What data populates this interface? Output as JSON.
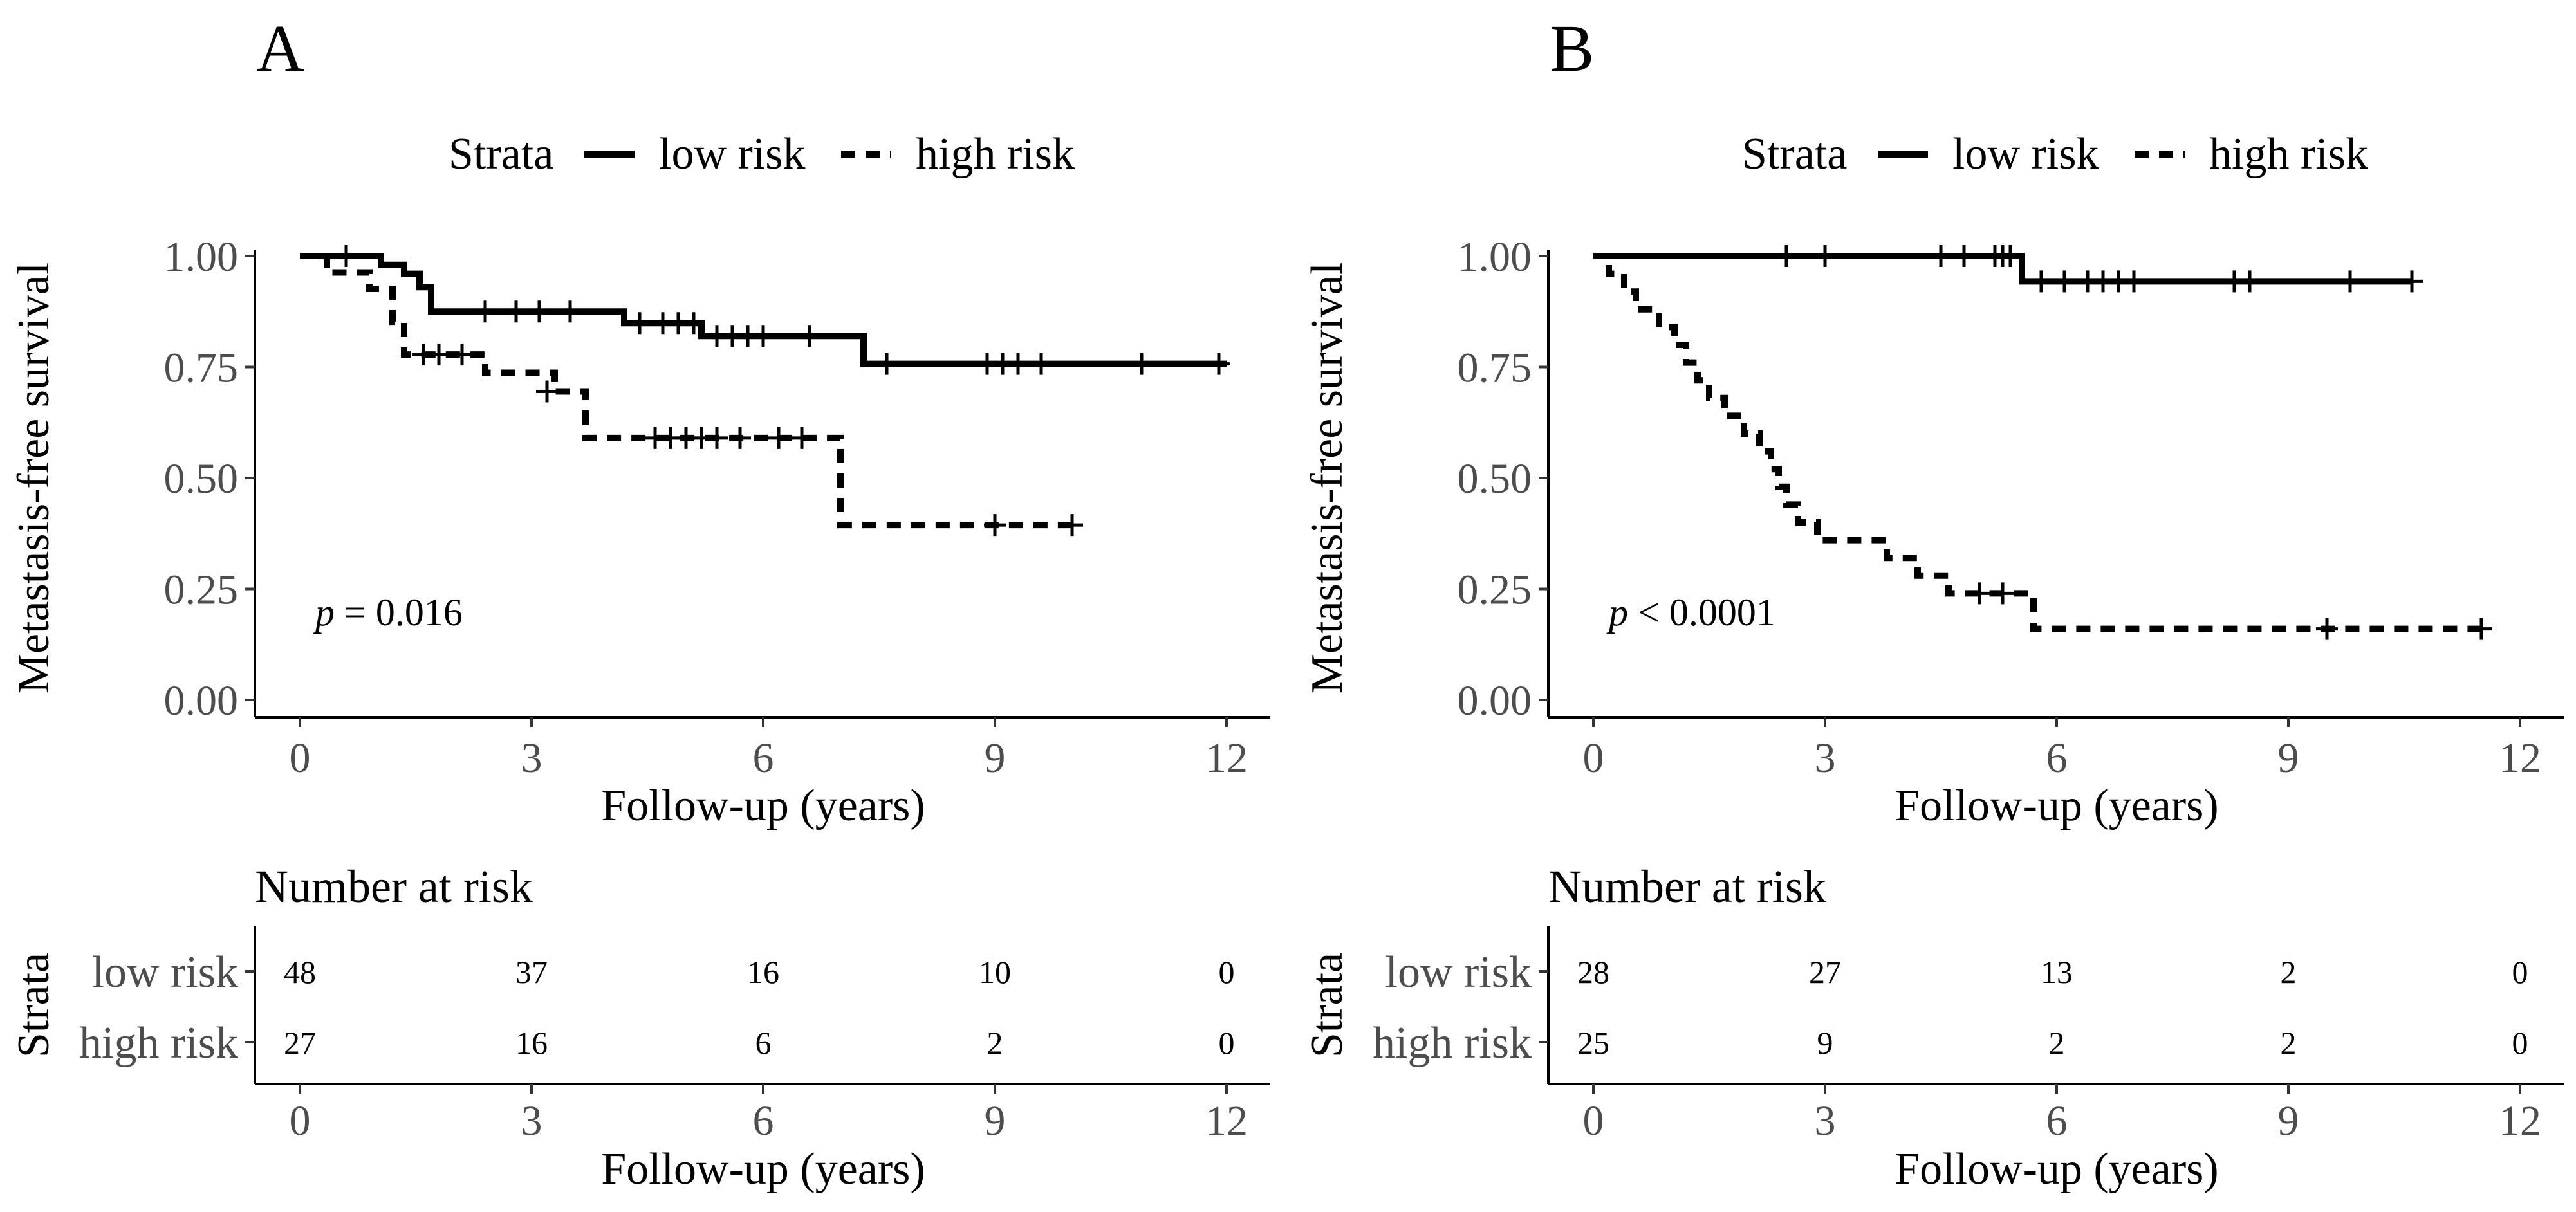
{
  "chart_data": [
    {
      "type": "line",
      "panel": "A",
      "legend": {
        "title": "Strata",
        "position": "top",
        "entries": [
          "low risk",
          "high risk"
        ]
      },
      "xlabel": "Follow-up (years)",
      "ylabel": "Metastasis-free survival",
      "xlim": [
        0,
        12
      ],
      "ylim": [
        0,
        1
      ],
      "xticks": [
        "0",
        "3",
        "6",
        "9",
        "12"
      ],
      "yticks": [
        "0.00",
        "0.25",
        "0.50",
        "0.75",
        "1.00"
      ],
      "grid": false,
      "pvalue": {
        "symbol": "p",
        "text": " = 0.016"
      },
      "series": [
        {
          "name": "low risk",
          "linestyle": "solid",
          "steps": [
            [
              0,
              1.0
            ],
            [
              1.05,
              0.98
            ],
            [
              1.35,
              0.96
            ],
            [
              1.55,
              0.93
            ],
            [
              1.7,
              0.875
            ],
            [
              4.2,
              0.849
            ],
            [
              5.2,
              0.82
            ],
            [
              7.3,
              0.757
            ],
            [
              12.0,
              0.757
            ]
          ],
          "censored": [
            [
              0.6,
              1.0
            ],
            [
              2.4,
              0.875
            ],
            [
              2.8,
              0.875
            ],
            [
              3.1,
              0.875
            ],
            [
              3.5,
              0.875
            ],
            [
              4.4,
              0.849
            ],
            [
              4.7,
              0.849
            ],
            [
              4.9,
              0.849
            ],
            [
              5.1,
              0.849
            ],
            [
              5.4,
              0.82
            ],
            [
              5.6,
              0.82
            ],
            [
              5.8,
              0.82
            ],
            [
              6.0,
              0.82
            ],
            [
              6.6,
              0.82
            ],
            [
              7.6,
              0.757
            ],
            [
              8.9,
              0.757
            ],
            [
              9.1,
              0.757
            ],
            [
              9.3,
              0.757
            ],
            [
              9.6,
              0.757
            ],
            [
              10.9,
              0.757
            ],
            [
              11.9,
              0.757
            ]
          ]
        },
        {
          "name": "high risk",
          "linestyle": "dashed",
          "steps": [
            [
              0,
              1.0
            ],
            [
              0.35,
              0.963
            ],
            [
              0.9,
              0.926
            ],
            [
              1.2,
              0.852
            ],
            [
              1.35,
              0.778
            ],
            [
              2.4,
              0.737
            ],
            [
              3.3,
              0.695
            ],
            [
              3.7,
              0.59
            ],
            [
              7.0,
              0.394
            ],
            [
              10.0,
              0.394
            ]
          ],
          "censored": [
            [
              1.6,
              0.778
            ],
            [
              1.8,
              0.778
            ],
            [
              2.1,
              0.778
            ],
            [
              3.2,
              0.695
            ],
            [
              4.6,
              0.59
            ],
            [
              4.8,
              0.59
            ],
            [
              5.0,
              0.59
            ],
            [
              5.2,
              0.59
            ],
            [
              5.4,
              0.59
            ],
            [
              5.7,
              0.59
            ],
            [
              6.2,
              0.59
            ],
            [
              6.5,
              0.59
            ],
            [
              9.0,
              0.394
            ],
            [
              10.0,
              0.394
            ]
          ]
        }
      ],
      "risk_table": {
        "title": "Number at risk",
        "ylabel": "Strata",
        "xlabel": "Follow-up (years)",
        "xticks": [
          "0",
          "3",
          "6",
          "9",
          "12"
        ],
        "rows": [
          {
            "label": "low risk",
            "values": [
              "48",
              "37",
              "16",
              "10",
              "0"
            ]
          },
          {
            "label": "high risk",
            "values": [
              "27",
              "16",
              "6",
              "2",
              "0"
            ]
          }
        ]
      }
    },
    {
      "type": "line",
      "panel": "B",
      "legend": {
        "title": "Strata",
        "position": "top",
        "entries": [
          "low risk",
          "high risk"
        ]
      },
      "xlabel": "Follow-up (years)",
      "ylabel": "Metastasis-free survival",
      "xlim": [
        0,
        12
      ],
      "ylim": [
        0,
        1
      ],
      "xticks": [
        "0",
        "3",
        "6",
        "9",
        "12"
      ],
      "yticks": [
        "0.00",
        "0.25",
        "0.50",
        "0.75",
        "1.00"
      ],
      "grid": false,
      "pvalue": {
        "symbol": "p",
        "text": " < 0.0001"
      },
      "series": [
        {
          "name": "low risk",
          "linestyle": "solid",
          "steps": [
            [
              0,
              1.0
            ],
            [
              5.55,
              0.943
            ],
            [
              10.6,
              0.943
            ]
          ],
          "censored": [
            [
              2.5,
              1.0
            ],
            [
              3.0,
              1.0
            ],
            [
              4.5,
              1.0
            ],
            [
              4.8,
              1.0
            ],
            [
              5.2,
              1.0
            ],
            [
              5.3,
              1.0
            ],
            [
              5.4,
              1.0
            ],
            [
              5.8,
              0.943
            ],
            [
              6.1,
              0.943
            ],
            [
              6.4,
              0.943
            ],
            [
              6.6,
              0.943
            ],
            [
              6.8,
              0.943
            ],
            [
              7.0,
              0.943
            ],
            [
              8.3,
              0.943
            ],
            [
              8.5,
              0.943
            ],
            [
              9.8,
              0.943
            ],
            [
              10.6,
              0.943
            ]
          ]
        },
        {
          "name": "high risk",
          "linestyle": "dashed",
          "steps": [
            [
              0,
              1.0
            ],
            [
              0.2,
              0.96
            ],
            [
              0.4,
              0.92
            ],
            [
              0.55,
              0.88
            ],
            [
              0.85,
              0.84
            ],
            [
              1.05,
              0.8
            ],
            [
              1.2,
              0.76
            ],
            [
              1.35,
              0.72
            ],
            [
              1.5,
              0.68
            ],
            [
              1.7,
              0.64
            ],
            [
              1.95,
              0.6
            ],
            [
              2.15,
              0.56
            ],
            [
              2.3,
              0.52
            ],
            [
              2.4,
              0.48
            ],
            [
              2.5,
              0.44
            ],
            [
              2.65,
              0.4
            ],
            [
              2.9,
              0.36
            ],
            [
              3.8,
              0.32
            ],
            [
              4.2,
              0.28
            ],
            [
              4.6,
              0.24
            ],
            [
              5.7,
              0.16
            ],
            [
              11.6,
              0.16
            ]
          ],
          "censored": [
            [
              5.0,
              0.24
            ],
            [
              5.3,
              0.24
            ],
            [
              9.5,
              0.16
            ],
            [
              11.5,
              0.16
            ]
          ]
        }
      ],
      "risk_table": {
        "title": "Number at risk",
        "ylabel": "Strata",
        "xlabel": "Follow-up (years)",
        "xticks": [
          "0",
          "3",
          "6",
          "9",
          "12"
        ],
        "rows": [
          {
            "label": "low risk",
            "values": [
              "28",
              "27",
              "13",
              "2",
              "0"
            ]
          },
          {
            "label": "high risk",
            "values": [
              "25",
              "9",
              "2",
              "2",
              "0"
            ]
          }
        ]
      }
    }
  ]
}
